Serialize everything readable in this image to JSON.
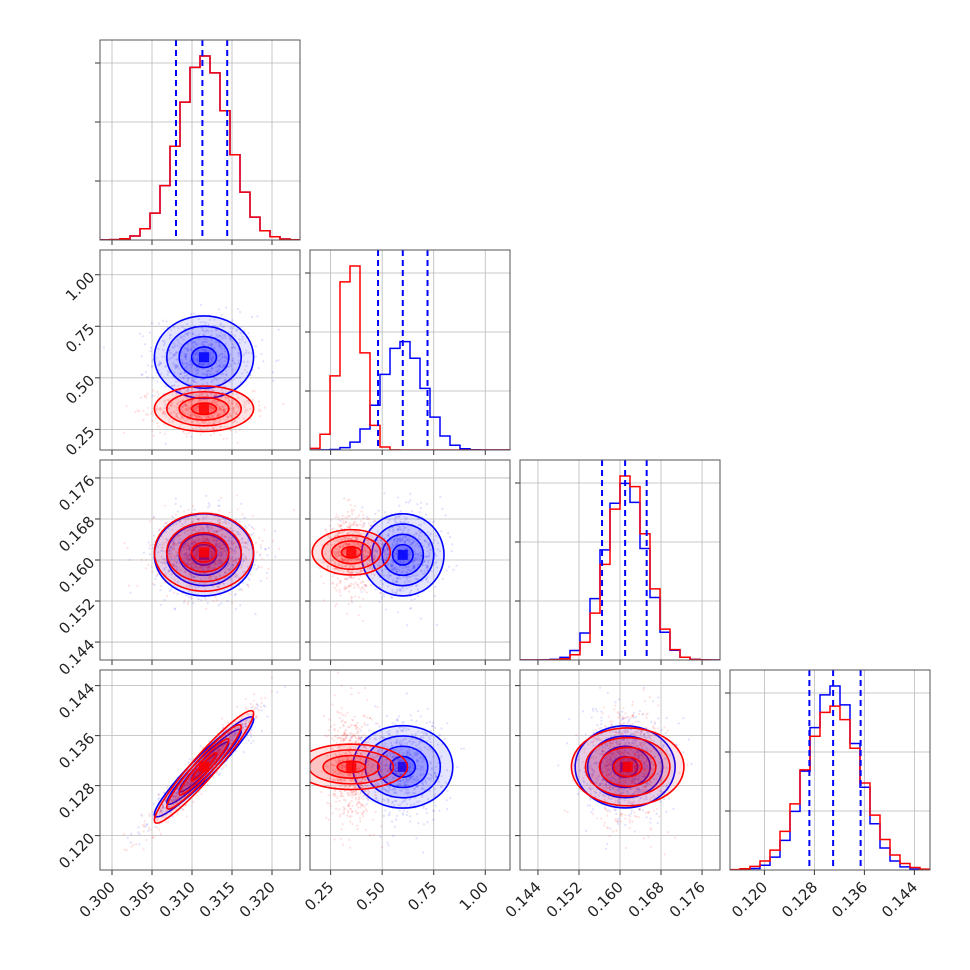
{
  "chart_data": {
    "type": "corner",
    "grid": true,
    "series": [
      {
        "color": "#0000ff",
        "means": [
          0.3115,
          0.6,
          0.161,
          0.131
        ],
        "sds": [
          0.0031,
          0.1,
          0.004,
          0.004
        ]
      },
      {
        "color": "#ff0000",
        "means": [
          0.3115,
          0.35,
          0.1615,
          0.131
        ],
        "sds": [
          0.0031,
          0.055,
          0.0038,
          0.0045
        ]
      }
    ],
    "params": [
      {
        "range": [
          0.2985,
          0.3235
        ],
        "ticks": [
          0.3,
          0.305,
          0.31,
          0.315,
          0.32
        ],
        "tick_labels": [
          "0.300",
          "0.305",
          "0.310",
          "0.315",
          "0.320"
        ]
      },
      {
        "range": [
          0.15,
          1.12
        ],
        "ticks": [
          0.25,
          0.5,
          0.75,
          1.0
        ],
        "tick_labels": [
          "0.25",
          "0.50",
          "0.75",
          "1.00"
        ]
      },
      {
        "range": [
          0.1405,
          0.1795
        ],
        "ticks": [
          0.144,
          0.152,
          0.16,
          0.168,
          0.176
        ],
        "tick_labels": [
          "0.144",
          "0.152",
          "0.160",
          "0.168",
          "0.176"
        ]
      },
      {
        "range": [
          0.1145,
          0.1465
        ],
        "ticks": [
          0.12,
          0.128,
          0.136,
          0.144
        ],
        "tick_labels": [
          "0.120",
          "0.128",
          "0.136",
          "0.144"
        ]
      }
    ],
    "correlations": {
      "0-3": {
        "blue": 0.95,
        "red": 0.95
      },
      "1-3": {
        "blue": 0.0,
        "red": 0.0
      },
      "0-1": {
        "blue": 0.0,
        "red": 0.0
      },
      "0-2": {
        "blue": 0.0,
        "red": 0.0
      },
      "1-2": {
        "blue": 0.0,
        "red": 0.0
      },
      "2-3": {
        "blue": 0.0,
        "red": 0.0
      }
    },
    "quantile_lines": [
      {
        "param": 0,
        "values": [
          0.308,
          0.3113,
          0.3144
        ],
        "color": "#0000ff"
      },
      {
        "param": 1,
        "values": [
          0.48,
          0.6,
          0.72
        ],
        "color": "#0000ff"
      },
      {
        "param": 2,
        "values": [
          0.1565,
          0.161,
          0.1652
        ],
        "color": "#0000ff"
      },
      {
        "param": 3,
        "values": [
          0.1272,
          0.131,
          0.1354
        ],
        "color": "#0000ff"
      }
    ],
    "contour_levels_sigma": [
      0.5,
      1.0,
      1.5,
      2.0
    ]
  }
}
